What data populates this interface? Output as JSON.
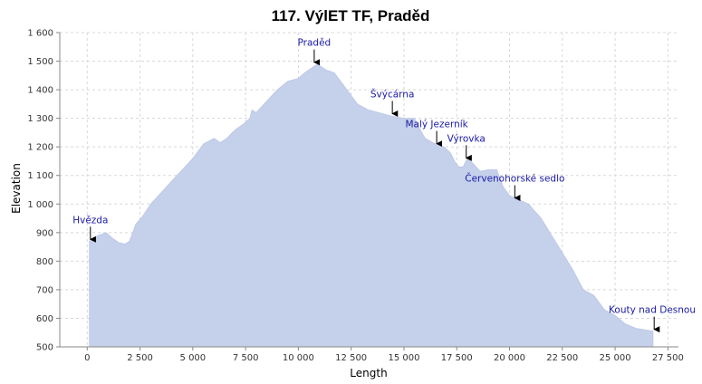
{
  "chart_data": {
    "type": "area",
    "title": "117. VýlET TF, Praděd",
    "xlabel": "Length",
    "ylabel": "Elevation",
    "xlim": [
      -1300,
      28000
    ],
    "ylim": [
      500,
      1600
    ],
    "xticks": [
      0,
      2500,
      5000,
      7500,
      10000,
      12500,
      15000,
      17500,
      20000,
      22500,
      25000,
      27500
    ],
    "xtick_labels": [
      "0",
      "2 500",
      "5 000",
      "7 500",
      "10 000",
      "12 500",
      "15 000",
      "17 500",
      "20 000",
      "22 500",
      "25 000",
      "27 500"
    ],
    "yticks": [
      500,
      600,
      700,
      800,
      900,
      1000,
      1100,
      1200,
      1300,
      1400,
      1500,
      1600
    ],
    "ytick_labels": [
      "500",
      "600",
      "700",
      "800",
      "900",
      "1 000",
      "1 100",
      "1 200",
      "1 300",
      "1 400",
      "1 500",
      "1 600"
    ],
    "grid": true,
    "colors": {
      "fill": "#c5d0eb",
      "annotation": "#1a1aa6",
      "grid": "#d8d8d8"
    },
    "series": [
      {
        "x": [
          100,
          500,
          900,
          1200,
          1500,
          1800,
          2000,
          2300,
          2600,
          3000,
          3500,
          4000,
          4500,
          5000,
          5500,
          6000,
          6300,
          6600,
          7000,
          7400,
          7700,
          7800,
          8000,
          8500,
          9000,
          9500,
          10000,
          10300,
          10700,
          10900,
          11300,
          11700,
          12000,
          12400,
          12800,
          13300,
          13800,
          14300,
          15000,
          15500,
          15700,
          16000,
          16500,
          16900,
          17200,
          17400,
          17600,
          17800,
          18000,
          18300,
          18600,
          19000,
          19400,
          19700,
          20000,
          20300,
          20600,
          20900,
          21200,
          21500,
          22000,
          22500,
          23000,
          23500,
          24000,
          24500,
          25000,
          25500,
          26000,
          26800
        ],
        "y": [
          870,
          890,
          900,
          880,
          865,
          860,
          870,
          930,
          955,
          1000,
          1040,
          1080,
          1120,
          1160,
          1210,
          1230,
          1215,
          1230,
          1260,
          1280,
          1300,
          1330,
          1320,
          1360,
          1400,
          1430,
          1440,
          1460,
          1480,
          1490,
          1470,
          1460,
          1430,
          1390,
          1350,
          1330,
          1320,
          1310,
          1300,
          1300,
          1270,
          1230,
          1210,
          1200,
          1180,
          1150,
          1130,
          1130,
          1160,
          1140,
          1115,
          1120,
          1120,
          1060,
          1030,
          1020,
          1010,
          1000,
          975,
          950,
          890,
          830,
          770,
          700,
          680,
          630,
          610,
          580,
          565,
          555
        ]
      }
    ],
    "annotations": [
      {
        "label": "Hvězda",
        "x": 150,
        "y": 870
      },
      {
        "label": "Praděd",
        "x": 10750,
        "y": 1490
      },
      {
        "label": "Švýcárna",
        "x": 14450,
        "y": 1310
      },
      {
        "label": "Malý Jezerník",
        "x": 16550,
        "y": 1205
      },
      {
        "label": "Výrovka",
        "x": 17950,
        "y": 1155
      },
      {
        "label": "Červenohorské sedlo",
        "x": 20250,
        "y": 1015
      },
      {
        "label": "Kouty nad Desnou",
        "x": 26850,
        "y": 555
      }
    ]
  }
}
